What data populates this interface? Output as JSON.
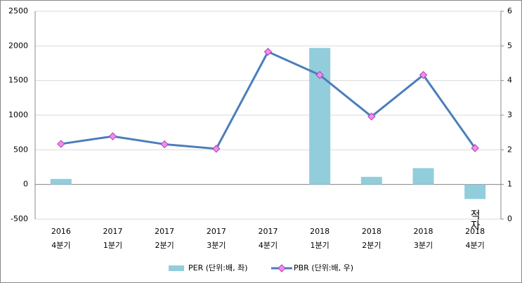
{
  "chart_data": {
    "type": "bar-line",
    "categories": [
      [
        "2016",
        "4분기"
      ],
      [
        "2017",
        "1분기"
      ],
      [
        "2017",
        "2분기"
      ],
      [
        "2017",
        "3분기"
      ],
      [
        "2017",
        "4분기"
      ],
      [
        "2018",
        "1분기"
      ],
      [
        "2018",
        "2분기"
      ],
      [
        "2018",
        "3분기"
      ],
      [
        "2018",
        "4분기"
      ]
    ],
    "series": [
      {
        "name": "PER (단위:배, 좌)",
        "type": "bar",
        "color": "#92cddc",
        "values": [
          80,
          null,
          null,
          null,
          null,
          1970,
          110,
          235,
          -210
        ]
      },
      {
        "name": "PBR (단위:배, 우)",
        "type": "line",
        "axis": "y2",
        "color": "#4a7ebb",
        "marker_color": "#f08cf0",
        "values": [
          2.17,
          2.39,
          2.16,
          2.03,
          4.83,
          4.16,
          2.96,
          4.16,
          2.05
        ]
      }
    ],
    "annotations": [
      "적자"
    ],
    "ylim": [
      -500,
      2500
    ],
    "yticks": [
      -500,
      0,
      500,
      1000,
      1500,
      2000,
      2500
    ],
    "y2lim": [
      0,
      6
    ],
    "y2ticks": [
      0,
      1,
      2,
      3,
      4,
      5,
      6
    ],
    "grid": true,
    "legend": "bottom"
  }
}
